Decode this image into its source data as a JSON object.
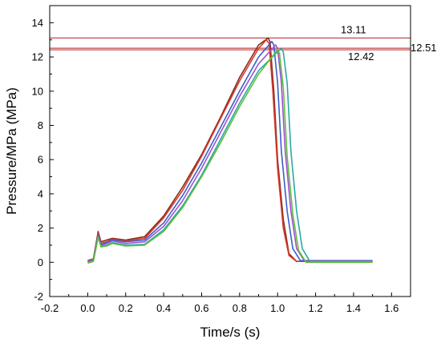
{
  "chart_data": {
    "type": "line",
    "title": "",
    "xlabel": "Time/s (s)",
    "ylabel": "Pressure/MPa (MPa)",
    "xlim": [
      -0.2,
      1.7
    ],
    "ylim": [
      -2,
      15
    ],
    "xticks": [
      "-0.2",
      "0.0",
      "0.2",
      "0.4",
      "0.6",
      "0.8",
      "1.0",
      "1.2",
      "1.4",
      "1.6"
    ],
    "yticks": [
      "-2",
      "0",
      "2",
      "4",
      "6",
      "8",
      "10",
      "12",
      "14"
    ],
    "grid": false,
    "series": [
      {
        "color": "#8b2a1a",
        "x": [
          0.0,
          0.03,
          0.055,
          0.07,
          0.1,
          0.13,
          0.2,
          0.3,
          0.4,
          0.5,
          0.6,
          0.7,
          0.8,
          0.9,
          0.95,
          0.96,
          0.98,
          1.0,
          1.03,
          1.06,
          1.1,
          1.5
        ],
        "y": [
          0.1,
          0.2,
          1.8,
          1.2,
          1.3,
          1.4,
          1.3,
          1.5,
          2.7,
          4.4,
          6.3,
          8.5,
          10.8,
          12.7,
          13.11,
          12.9,
          10.0,
          6.0,
          2.5,
          0.5,
          0.05,
          0.05
        ]
      },
      {
        "color": "#d43a2a",
        "x": [
          0.0,
          0.03,
          0.055,
          0.07,
          0.1,
          0.13,
          0.2,
          0.3,
          0.4,
          0.5,
          0.6,
          0.7,
          0.8,
          0.9,
          0.94,
          0.955,
          0.975,
          1.0,
          1.03,
          1.06,
          1.1,
          1.5
        ],
        "y": [
          0.1,
          0.2,
          1.7,
          1.1,
          1.2,
          1.35,
          1.25,
          1.4,
          2.6,
          4.2,
          6.2,
          8.4,
          10.6,
          12.5,
          13.0,
          12.8,
          10.0,
          5.5,
          2.0,
          0.4,
          0.05,
          0.05
        ]
      },
      {
        "color": "#3a5fc8",
        "x": [
          0.0,
          0.03,
          0.055,
          0.07,
          0.1,
          0.13,
          0.2,
          0.3,
          0.4,
          0.5,
          0.6,
          0.7,
          0.8,
          0.9,
          0.97,
          0.98,
          1.0,
          1.02,
          1.05,
          1.08,
          1.12,
          1.5
        ],
        "y": [
          0.05,
          0.15,
          1.6,
          1.05,
          1.15,
          1.3,
          1.2,
          1.3,
          2.3,
          3.9,
          5.8,
          7.9,
          10.0,
          12.0,
          12.9,
          12.7,
          10.5,
          6.5,
          3.0,
          0.8,
          0.1,
          0.1
        ]
      },
      {
        "color": "#a050d0",
        "x": [
          0.0,
          0.03,
          0.055,
          0.07,
          0.1,
          0.13,
          0.2,
          0.3,
          0.4,
          0.5,
          0.6,
          0.7,
          0.8,
          0.9,
          0.99,
          1.0,
          1.02,
          1.04,
          1.07,
          1.1,
          1.14,
          1.5
        ],
        "y": [
          0.05,
          0.15,
          1.55,
          1.0,
          1.1,
          1.25,
          1.1,
          1.2,
          2.1,
          3.6,
          5.5,
          7.6,
          9.7,
          11.6,
          12.7,
          12.5,
          10.5,
          6.5,
          3.0,
          0.8,
          0.1,
          0.1
        ]
      },
      {
        "color": "#2aa8a8",
        "x": [
          0.0,
          0.03,
          0.055,
          0.07,
          0.1,
          0.13,
          0.2,
          0.3,
          0.4,
          0.5,
          0.6,
          0.7,
          0.8,
          0.9,
          1.02,
          1.03,
          1.05,
          1.07,
          1.1,
          1.13,
          1.17,
          1.5
        ],
        "y": [
          0.0,
          0.1,
          1.5,
          0.95,
          1.0,
          1.15,
          1.0,
          1.05,
          1.9,
          3.3,
          5.1,
          7.2,
          9.3,
          11.2,
          12.51,
          12.3,
          10.5,
          6.5,
          3.0,
          0.8,
          0.05,
          0.05
        ]
      },
      {
        "color": "#5fbf3a",
        "x": [
          0.0,
          0.03,
          0.055,
          0.07,
          0.1,
          0.13,
          0.2,
          0.3,
          0.4,
          0.5,
          0.6,
          0.7,
          0.8,
          0.9,
          1.0,
          1.01,
          1.03,
          1.05,
          1.08,
          1.11,
          1.15,
          1.5
        ],
        "y": [
          -0.05,
          0.05,
          1.45,
          0.9,
          0.95,
          1.1,
          0.95,
          1.0,
          1.8,
          3.2,
          5.0,
          7.0,
          9.1,
          11.0,
          12.42,
          12.2,
          10.2,
          6.2,
          2.8,
          0.7,
          0.0,
          0.0
        ]
      }
    ],
    "reference_lines": [
      {
        "y": 13.11,
        "label": "13.11",
        "color": "#b22222"
      },
      {
        "y": 12.51,
        "label": "12.51",
        "color": "#b22222"
      },
      {
        "y": 12.42,
        "label": "12.42",
        "color": "#b22222"
      }
    ]
  }
}
